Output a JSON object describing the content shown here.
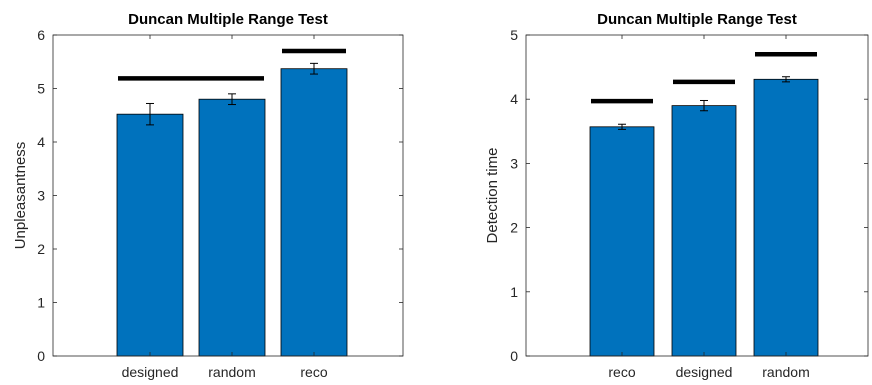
{
  "chart_data": [
    {
      "type": "bar",
      "title": "Duncan Multiple Range Test",
      "xlabel": "",
      "ylabel": "Unpleasantness",
      "ylim": [
        0,
        6
      ],
      "yticks": [
        0,
        1,
        2,
        3,
        4,
        5,
        6
      ],
      "categories": [
        "designed",
        "random",
        "reco"
      ],
      "values": [
        4.52,
        4.8,
        5.37
      ],
      "errors": [
        0.2,
        0.1,
        0.1
      ],
      "bar_color": "#0072BD",
      "grid": false,
      "significance_lines": [
        {
          "from": 0,
          "to": 1,
          "y": 5.19
        },
        {
          "from": 2,
          "to": 2,
          "y": 5.7
        }
      ]
    },
    {
      "type": "bar",
      "title": "Duncan Multiple Range Test",
      "xlabel": "",
      "ylabel": "Detection time",
      "ylim": [
        0,
        5
      ],
      "yticks": [
        0,
        1,
        2,
        3,
        4,
        5
      ],
      "categories": [
        "reco",
        "designed",
        "random"
      ],
      "values": [
        3.57,
        3.9,
        4.31
      ],
      "errors": [
        0.04,
        0.08,
        0.04
      ],
      "bar_color": "#0072BD",
      "grid": false,
      "significance_lines": [
        {
          "from": 0,
          "to": 0,
          "y": 3.97
        },
        {
          "from": 1,
          "to": 1,
          "y": 4.27
        },
        {
          "from": 2,
          "to": 2,
          "y": 4.7
        }
      ]
    }
  ]
}
